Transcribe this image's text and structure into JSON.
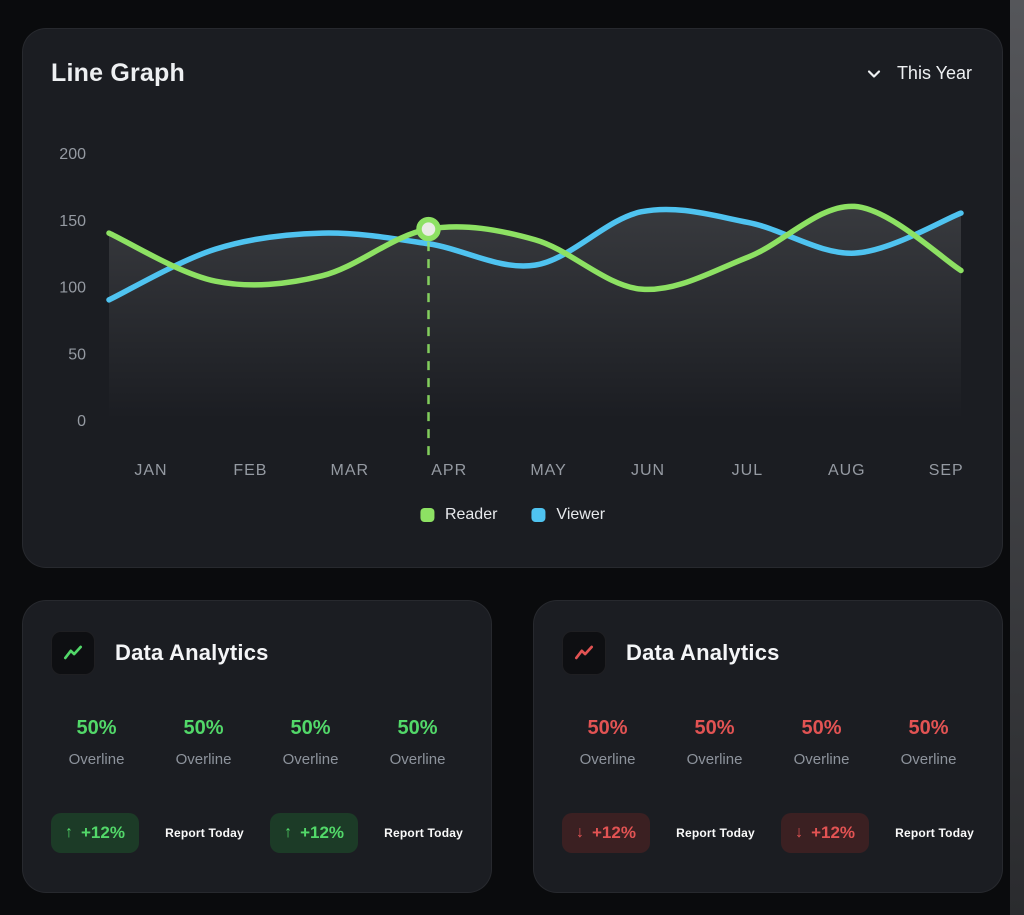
{
  "page": {
    "background": "#0a0b0d"
  },
  "line_graph_card": {
    "title": "Line Graph",
    "period_selector": {
      "label": "This Year",
      "icon": "chevron-down"
    }
  },
  "chart_data": {
    "type": "line",
    "title": "Line Graph",
    "categories": [
      "JAN",
      "FEB",
      "MAR",
      "APR",
      "MAY",
      "JUN",
      "JUL",
      "AUG",
      "SEP"
    ],
    "series": [
      {
        "name": "Reader",
        "color": "#8de163",
        "values": [
          140,
          104,
          108,
          143,
          135,
          98,
          122,
          160,
          112
        ]
      },
      {
        "name": "Viewer",
        "color": "#4fc3f0",
        "values": [
          90,
          128,
          140,
          132,
          116,
          156,
          148,
          125,
          155
        ]
      }
    ],
    "ylim": [
      0,
      200
    ],
    "yticks": [
      0,
      50,
      100,
      150,
      200
    ],
    "grid": false,
    "legend_position": "bottom",
    "area_fill": "upper-envelope vertical fade",
    "highlight": {
      "series": "Reader",
      "category": "APR",
      "index": 3,
      "value": 143,
      "marker_fill": "#e9ebe5"
    }
  },
  "analytics_cards": [
    {
      "title": "Data Analytics",
      "icon": "trend-up-icon",
      "accent": "#52d869",
      "badge_bg": "#1c3b27",
      "stats": [
        {
          "value": "50%",
          "label": "Overline"
        },
        {
          "value": "50%",
          "label": "Overline"
        },
        {
          "value": "50%",
          "label": "Overline"
        },
        {
          "value": "50%",
          "label": "Overline"
        }
      ],
      "badges": [
        {
          "arrow": "↑",
          "text": "+12%"
        },
        {
          "arrow": "↑",
          "text": "+12%"
        }
      ],
      "report_label": "Report Today"
    },
    {
      "title": "Data Analytics",
      "icon": "trend-down-icon",
      "accent": "#e25353",
      "badge_bg": "#3b2022",
      "stats": [
        {
          "value": "50%",
          "label": "Overline"
        },
        {
          "value": "50%",
          "label": "Overline"
        },
        {
          "value": "50%",
          "label": "Overline"
        },
        {
          "value": "50%",
          "label": "Overline"
        }
      ],
      "badges": [
        {
          "arrow": "↓",
          "text": "+12%"
        },
        {
          "arrow": "↓",
          "text": "+12%"
        }
      ],
      "report_label": "Report Today"
    }
  ]
}
